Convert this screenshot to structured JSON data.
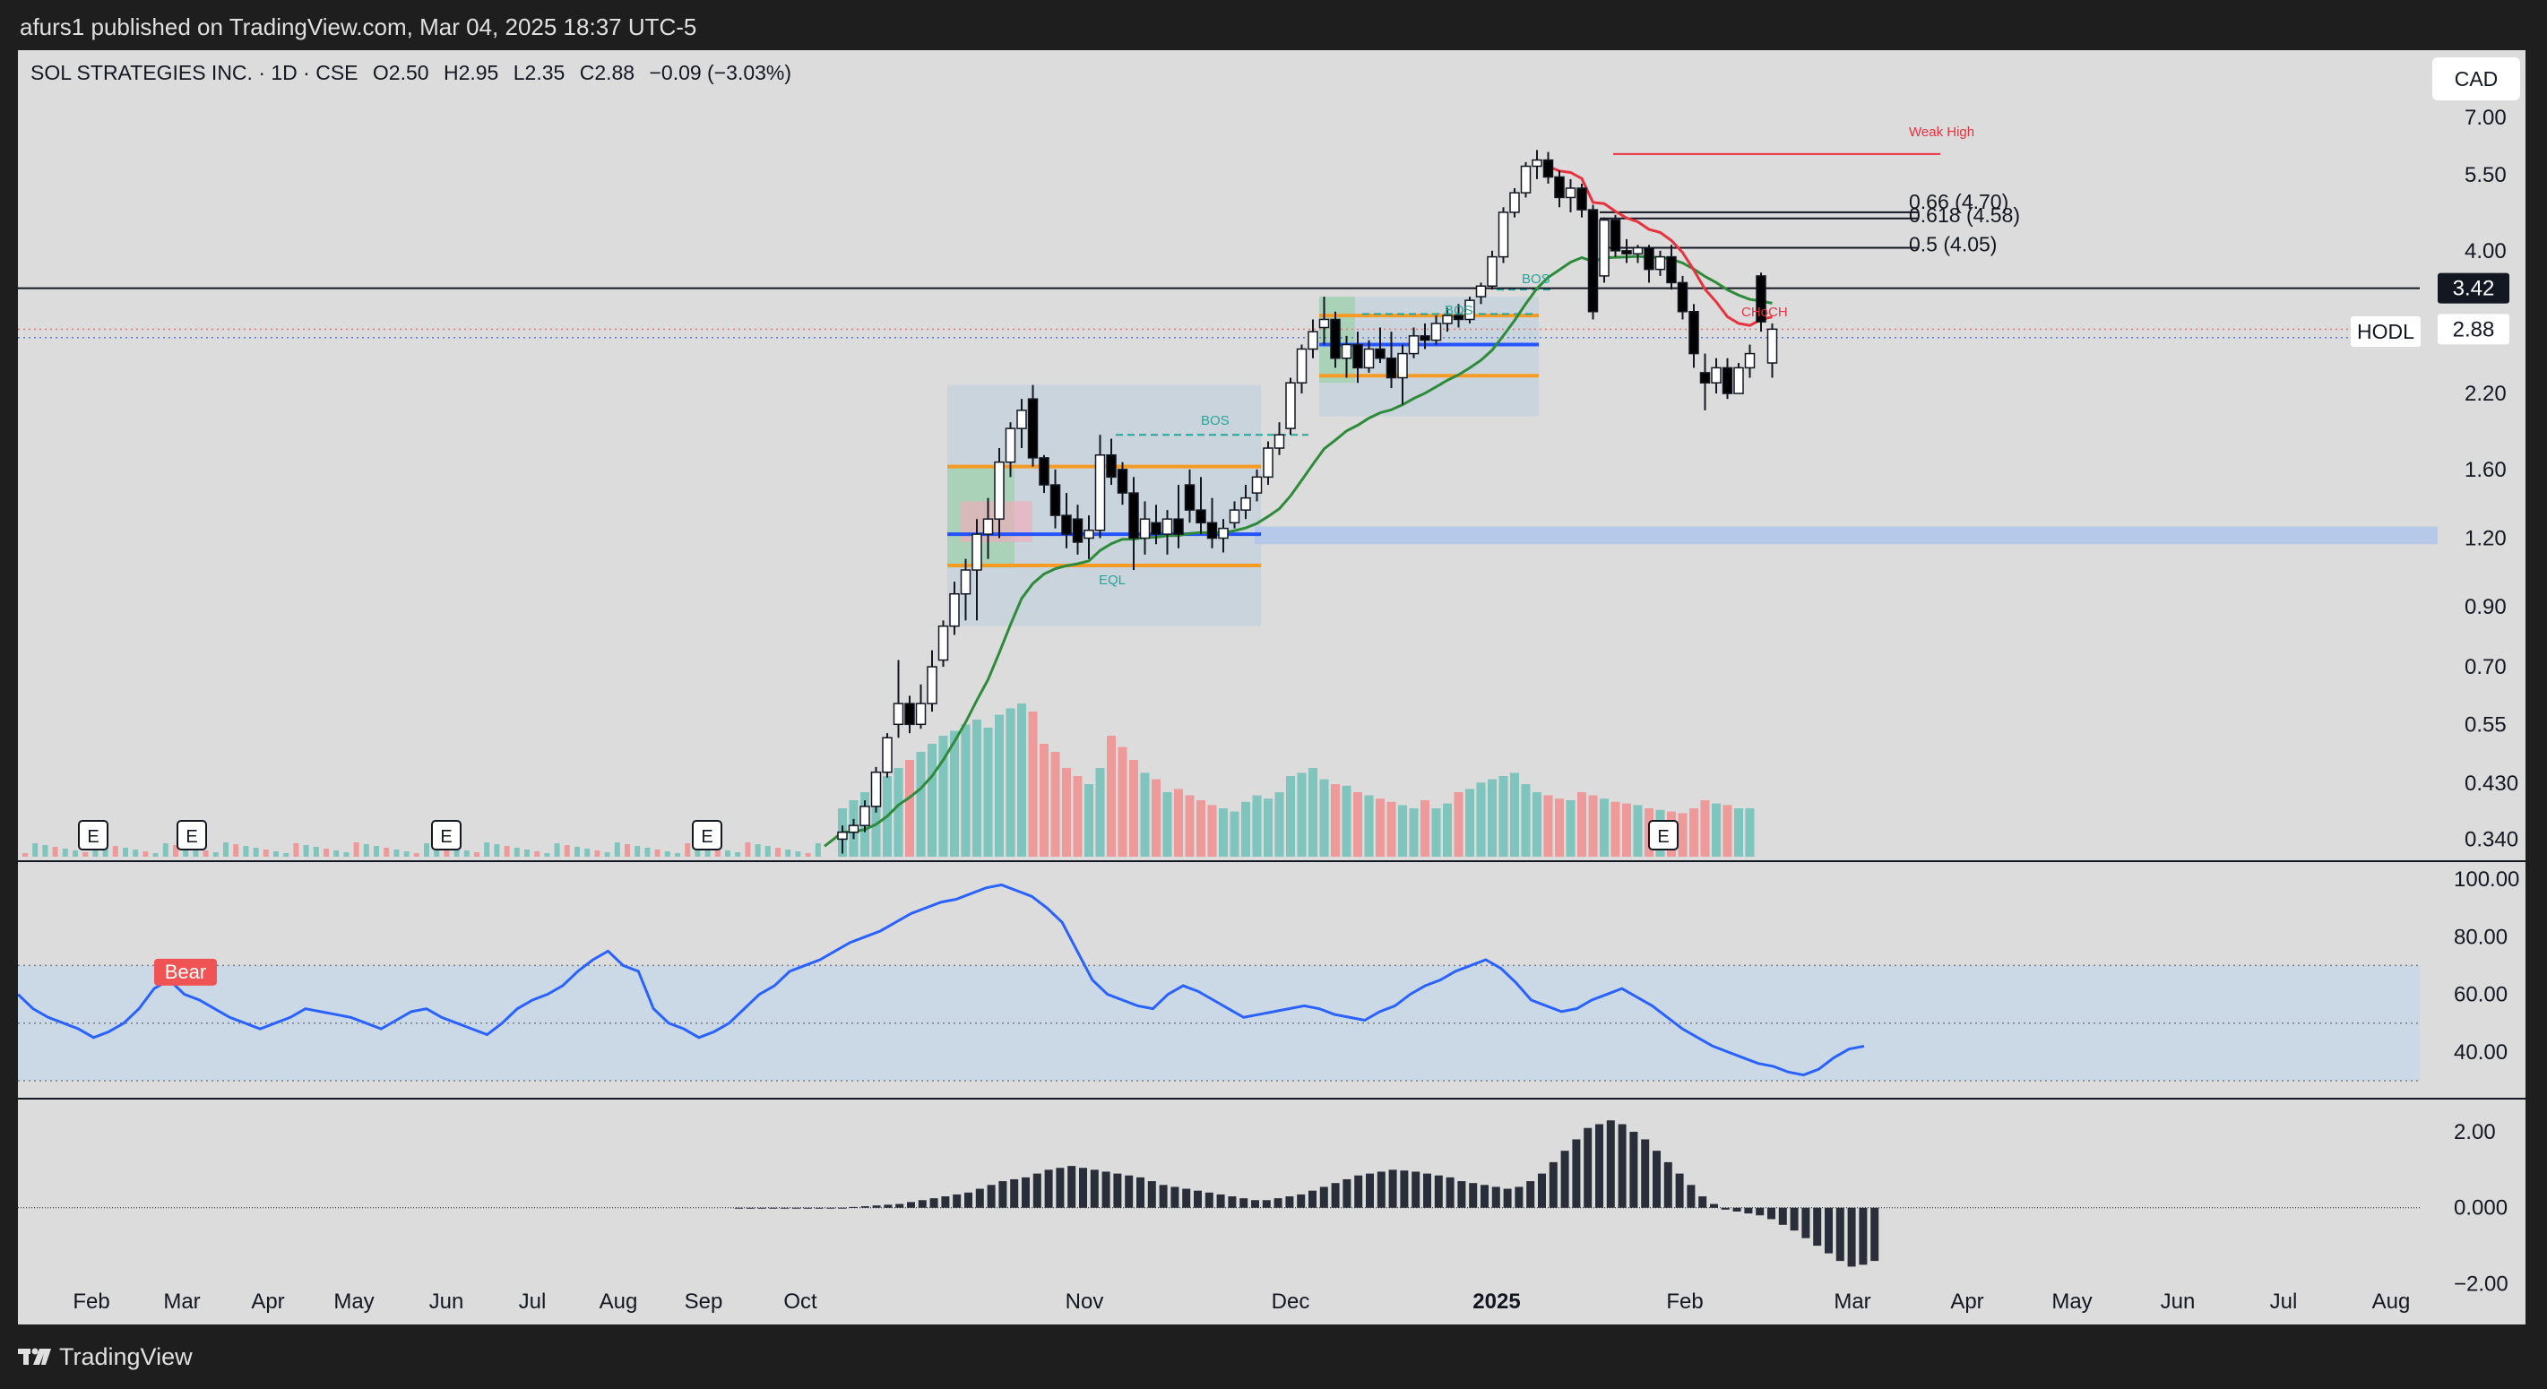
{
  "header": {
    "published": "afurs1 published on TradingView.com, Mar 04, 2025 18:37 UTC-5"
  },
  "legend": {
    "symbol": "SOL STRATEGIES INC. · 1D · CSE",
    "open_label": "O",
    "open": "2.50",
    "high_label": "H",
    "high": "2.95",
    "low_label": "L",
    "low": "2.35",
    "close_label": "C",
    "close": "2.88",
    "change": "−0.09 (−3.03%)"
  },
  "currency_button": "CAD",
  "hodl_label": "HODL",
  "footer": {
    "brand": "TradingView",
    "logo_icon": "tradingview-logo-icon"
  },
  "colors": {
    "up_candle": "#ffffff",
    "down_candle": "#000000",
    "volume_up": "#7fc4bd",
    "volume_down": "#ef9a9a",
    "ema_green": "#2e8b3a",
    "ema_red": "#e8323e",
    "rsi_line": "#2962ff",
    "rsi_band": "#c9d8e8",
    "order_block_orange": "#f59b23",
    "eq_blue": "#2453ff",
    "fvg_band": "#b3c7ea",
    "price_tag": "#131722"
  },
  "chart_data": [
    {
      "type": "candlestick",
      "title": "SOL STRATEGIES INC. · 1D · CSE",
      "y_scale": "log",
      "ylim": [
        0.31,
        7.4
      ],
      "y_ticks": [
        "7.00",
        "5.50",
        "4.00",
        "3.42",
        "2.88",
        "2.20",
        "1.60",
        "1.20",
        "0.90",
        "0.70",
        "0.55",
        "0.430",
        "0.340"
      ],
      "x_ticks": [
        "Feb",
        "Mar",
        "Apr",
        "May",
        "Jun",
        "Jul",
        "Aug",
        "Sep",
        "Oct",
        "Nov",
        "Dec",
        "2025",
        "Feb",
        "Mar",
        "Apr",
        "May",
        "Jun",
        "Jul",
        "Aug"
      ],
      "last_price": "2.88",
      "horizontal_level": "3.42",
      "fib_levels": [
        {
          "label": "0.66 (4.70)",
          "value": 4.7
        },
        {
          "label": "0.618 (4.58)",
          "value": 4.58
        },
        {
          "label": "0.5 (4.05)",
          "value": 4.05
        }
      ],
      "annotations": [
        "Weak High",
        "BOS",
        "BOS",
        "BOS",
        "EQL",
        "CHoCH"
      ],
      "earnings_markers": [
        "E",
        "E",
        "E",
        "E",
        "E"
      ],
      "candles": [
        {
          "o": 0.34,
          "h": 0.36,
          "l": 0.32,
          "c": 0.35
        },
        {
          "o": 0.35,
          "h": 0.37,
          "l": 0.34,
          "c": 0.36
        },
        {
          "o": 0.36,
          "h": 0.4,
          "l": 0.35,
          "c": 0.39
        },
        {
          "o": 0.39,
          "h": 0.46,
          "l": 0.38,
          "c": 0.45
        },
        {
          "o": 0.45,
          "h": 0.53,
          "l": 0.44,
          "c": 0.52
        },
        {
          "o": 0.55,
          "h": 0.72,
          "l": 0.52,
          "c": 0.6
        },
        {
          "o": 0.6,
          "h": 0.62,
          "l": 0.53,
          "c": 0.55
        },
        {
          "o": 0.55,
          "h": 0.65,
          "l": 0.54,
          "c": 0.6
        },
        {
          "o": 0.6,
          "h": 0.75,
          "l": 0.58,
          "c": 0.7
        },
        {
          "o": 0.72,
          "h": 0.85,
          "l": 0.7,
          "c": 0.83
        },
        {
          "o": 0.83,
          "h": 1.0,
          "l": 0.8,
          "c": 0.95
        },
        {
          "o": 0.95,
          "h": 1.1,
          "l": 0.85,
          "c": 1.05
        },
        {
          "o": 1.05,
          "h": 1.3,
          "l": 0.85,
          "c": 1.22
        },
        {
          "o": 1.22,
          "h": 1.42,
          "l": 1.1,
          "c": 1.3
        },
        {
          "o": 1.3,
          "h": 1.75,
          "l": 1.2,
          "c": 1.65
        },
        {
          "o": 1.65,
          "h": 1.95,
          "l": 1.55,
          "c": 1.9
        },
        {
          "o": 1.9,
          "h": 2.15,
          "l": 1.75,
          "c": 2.05
        },
        {
          "o": 2.15,
          "h": 2.28,
          "l": 1.62,
          "c": 1.68
        },
        {
          "o": 1.68,
          "h": 1.7,
          "l": 1.45,
          "c": 1.5
        },
        {
          "o": 1.5,
          "h": 1.6,
          "l": 1.25,
          "c": 1.32
        },
        {
          "o": 1.32,
          "h": 1.45,
          "l": 1.15,
          "c": 1.22
        },
        {
          "o": 1.3,
          "h": 1.38,
          "l": 1.12,
          "c": 1.18
        },
        {
          "o": 1.2,
          "h": 1.32,
          "l": 1.1,
          "c": 1.24
        },
        {
          "o": 1.24,
          "h": 1.85,
          "l": 1.2,
          "c": 1.7
        },
        {
          "o": 1.7,
          "h": 1.82,
          "l": 1.5,
          "c": 1.55
        },
        {
          "o": 1.6,
          "h": 1.65,
          "l": 1.38,
          "c": 1.45
        },
        {
          "o": 1.45,
          "h": 1.55,
          "l": 1.05,
          "c": 1.2
        },
        {
          "o": 1.2,
          "h": 1.4,
          "l": 1.12,
          "c": 1.3
        },
        {
          "o": 1.28,
          "h": 1.38,
          "l": 1.17,
          "c": 1.22
        },
        {
          "o": 1.22,
          "h": 1.35,
          "l": 1.12,
          "c": 1.3
        },
        {
          "o": 1.3,
          "h": 1.5,
          "l": 1.15,
          "c": 1.22
        },
        {
          "o": 1.5,
          "h": 1.6,
          "l": 1.28,
          "c": 1.35
        },
        {
          "o": 1.35,
          "h": 1.55,
          "l": 1.22,
          "c": 1.28
        },
        {
          "o": 1.28,
          "h": 1.42,
          "l": 1.15,
          "c": 1.2
        },
        {
          "o": 1.2,
          "h": 1.3,
          "l": 1.13,
          "c": 1.25
        },
        {
          "o": 1.28,
          "h": 1.4,
          "l": 1.25,
          "c": 1.35
        },
        {
          "o": 1.35,
          "h": 1.5,
          "l": 1.3,
          "c": 1.42
        },
        {
          "o": 1.45,
          "h": 1.6,
          "l": 1.4,
          "c": 1.55
        },
        {
          "o": 1.55,
          "h": 1.8,
          "l": 1.5,
          "c": 1.75
        },
        {
          "o": 1.75,
          "h": 1.95,
          "l": 1.7,
          "c": 1.85
        },
        {
          "o": 1.9,
          "h": 2.35,
          "l": 1.85,
          "c": 2.3
        },
        {
          "o": 2.3,
          "h": 2.7,
          "l": 2.2,
          "c": 2.65
        },
        {
          "o": 2.65,
          "h": 3.0,
          "l": 2.55,
          "c": 2.85
        },
        {
          "o": 2.9,
          "h": 3.3,
          "l": 2.7,
          "c": 3.0
        },
        {
          "o": 3.0,
          "h": 3.1,
          "l": 2.45,
          "c": 2.55
        },
        {
          "o": 2.55,
          "h": 2.8,
          "l": 2.35,
          "c": 2.7
        },
        {
          "o": 2.7,
          "h": 2.85,
          "l": 2.3,
          "c": 2.45
        },
        {
          "o": 2.45,
          "h": 2.75,
          "l": 2.4,
          "c": 2.65
        },
        {
          "o": 2.65,
          "h": 2.9,
          "l": 2.5,
          "c": 2.55
        },
        {
          "o": 2.55,
          "h": 2.85,
          "l": 2.25,
          "c": 2.35
        },
        {
          "o": 2.35,
          "h": 2.7,
          "l": 2.1,
          "c": 2.6
        },
        {
          "o": 2.6,
          "h": 2.9,
          "l": 2.55,
          "c": 2.8
        },
        {
          "o": 2.8,
          "h": 2.95,
          "l": 2.65,
          "c": 2.75
        },
        {
          "o": 2.75,
          "h": 3.05,
          "l": 2.7,
          "c": 2.95
        },
        {
          "o": 2.95,
          "h": 3.15,
          "l": 2.85,
          "c": 3.05
        },
        {
          "o": 3.05,
          "h": 3.2,
          "l": 2.9,
          "c": 3.0
        },
        {
          "o": 3.0,
          "h": 3.3,
          "l": 2.95,
          "c": 3.25
        },
        {
          "o": 3.3,
          "h": 3.5,
          "l": 3.2,
          "c": 3.45
        },
        {
          "o": 3.45,
          "h": 4.0,
          "l": 3.4,
          "c": 3.9
        },
        {
          "o": 3.9,
          "h": 4.8,
          "l": 3.8,
          "c": 4.7
        },
        {
          "o": 4.7,
          "h": 5.2,
          "l": 4.6,
          "c": 5.1
        },
        {
          "o": 5.1,
          "h": 5.8,
          "l": 5.0,
          "c": 5.7
        },
        {
          "o": 5.7,
          "h": 6.1,
          "l": 5.4,
          "c": 5.85
        },
        {
          "o": 5.85,
          "h": 6.05,
          "l": 5.3,
          "c": 5.45
        },
        {
          "o": 5.45,
          "h": 5.6,
          "l": 4.8,
          "c": 5.0
        },
        {
          "o": 5.0,
          "h": 5.4,
          "l": 4.7,
          "c": 5.2
        },
        {
          "o": 5.2,
          "h": 5.3,
          "l": 4.6,
          "c": 4.75
        },
        {
          "o": 4.75,
          "h": 4.85,
          "l": 3.0,
          "c": 3.1
        },
        {
          "o": 3.6,
          "h": 4.6,
          "l": 3.5,
          "c": 4.55
        },
        {
          "o": 4.55,
          "h": 4.65,
          "l": 3.9,
          "c": 4.0
        },
        {
          "o": 4.0,
          "h": 4.2,
          "l": 3.8,
          "c": 3.95
        },
        {
          "o": 3.95,
          "h": 4.1,
          "l": 3.8,
          "c": 4.05
        },
        {
          "o": 4.05,
          "h": 4.1,
          "l": 3.5,
          "c": 3.7
        },
        {
          "o": 3.7,
          "h": 4.0,
          "l": 3.6,
          "c": 3.9
        },
        {
          "o": 3.9,
          "h": 4.1,
          "l": 3.4,
          "c": 3.5
        },
        {
          "o": 3.5,
          "h": 3.6,
          "l": 3.0,
          "c": 3.1
        },
        {
          "o": 3.1,
          "h": 3.2,
          "l": 2.45,
          "c": 2.6
        },
        {
          "o": 2.4,
          "h": 2.6,
          "l": 2.05,
          "c": 2.3
        },
        {
          "o": 2.3,
          "h": 2.55,
          "l": 2.2,
          "c": 2.45
        },
        {
          "o": 2.45,
          "h": 2.55,
          "l": 2.15,
          "c": 2.2
        },
        {
          "o": 2.2,
          "h": 2.5,
          "l": 2.2,
          "c": 2.45
        },
        {
          "o": 2.45,
          "h": 2.7,
          "l": 2.35,
          "c": 2.6
        },
        {
          "o": 3.6,
          "h": 3.65,
          "l": 2.85,
          "c": 2.97
        },
        {
          "o": 2.5,
          "h": 2.95,
          "l": 2.35,
          "c": 2.88
        }
      ]
    },
    {
      "type": "bar",
      "title": "Volume",
      "series": [
        {
          "values": [
            0.3,
            0.35,
            0.4,
            0.45,
            0.5,
            0.55,
            0.6,
            0.65,
            0.7,
            0.75,
            0.78,
            0.82,
            0.85,
            0.8,
            0.88,
            0.92,
            0.95,
            0.9,
            0.7,
            0.65,
            0.55,
            0.5,
            0.45,
            0.55,
            0.75,
            0.68,
            0.6,
            0.52,
            0.48,
            0.4,
            0.42,
            0.38,
            0.35,
            0.32,
            0.3,
            0.28,
            0.34,
            0.38,
            0.36,
            0.4,
            0.5,
            0.52,
            0.55,
            0.48,
            0.45,
            0.44,
            0.4,
            0.38,
            0.36,
            0.34,
            0.32,
            0.3,
            0.35,
            0.3,
            0.33,
            0.4,
            0.42,
            0.46,
            0.48,
            0.5,
            0.52,
            0.45,
            0.4,
            0.38,
            0.36,
            0.35,
            0.4,
            0.38,
            0.36,
            0.34,
            0.33,
            0.32,
            0.3,
            0.29,
            0.28,
            0.27,
            0.3,
            0.35,
            0.33,
            0.32,
            0.3,
            0.3
          ]
        }
      ]
    },
    {
      "type": "line",
      "title": "RSI",
      "y_ticks": [
        "100.00",
        "80.00",
        "60.00",
        "40.00"
      ],
      "ylim": [
        30,
        100
      ],
      "band": [
        30,
        70
      ],
      "midline": 50,
      "signal_label": "Bear",
      "series": [
        {
          "values": [
            60,
            55,
            52,
            50,
            48,
            45,
            47,
            50,
            55,
            62,
            65,
            60,
            58,
            55,
            52,
            50,
            48,
            50,
            52,
            55,
            54,
            53,
            52,
            50,
            48,
            51,
            54,
            55,
            52,
            50,
            48,
            46,
            50,
            55,
            58,
            60,
            63,
            68,
            72,
            75,
            70,
            68,
            55,
            50,
            48,
            45,
            47,
            50,
            55,
            60,
            63,
            68,
            70,
            72,
            75,
            78,
            80,
            82,
            85,
            88,
            90,
            92,
            93,
            95,
            97,
            98,
            96,
            94,
            90,
            85,
            75,
            65,
            60,
            58,
            56,
            55,
            60,
            63,
            61,
            58,
            55,
            52,
            53,
            54,
            55,
            56,
            55,
            53,
            52,
            51,
            54,
            56,
            60,
            63,
            65,
            68,
            70,
            72,
            69,
            64,
            58,
            56,
            54,
            55,
            58,
            60,
            62,
            59,
            56,
            52,
            48,
            45,
            42,
            40,
            38,
            36,
            35,
            33,
            32,
            34,
            38,
            41,
            42
          ]
        }
      ]
    },
    {
      "type": "bar",
      "title": "Momentum histogram",
      "y_ticks": [
        "2.00",
        "0.000",
        "−2.00"
      ],
      "ylim": [
        -2.2,
        2.4
      ],
      "series": [
        {
          "values": [
            0,
            0,
            0,
            0,
            0,
            0,
            0,
            0,
            0,
            0,
            0.02,
            0.04,
            0.06,
            0.08,
            0.1,
            0.15,
            0.2,
            0.25,
            0.3,
            0.35,
            0.4,
            0.5,
            0.6,
            0.7,
            0.75,
            0.8,
            0.9,
            1.0,
            1.05,
            1.1,
            1.05,
            1.0,
            0.95,
            0.9,
            0.85,
            0.8,
            0.7,
            0.6,
            0.55,
            0.5,
            0.45,
            0.4,
            0.35,
            0.3,
            0.25,
            0.2,
            0.2,
            0.25,
            0.3,
            0.35,
            0.45,
            0.55,
            0.65,
            0.75,
            0.85,
            0.9,
            0.95,
            1.0,
            0.98,
            0.95,
            0.9,
            0.85,
            0.8,
            0.7,
            0.65,
            0.6,
            0.55,
            0.5,
            0.55,
            0.7,
            0.9,
            1.2,
            1.5,
            1.8,
            2.1,
            2.2,
            2.3,
            2.2,
            2.0,
            1.8,
            1.5,
            1.2,
            0.9,
            0.6,
            0.3,
            0.1,
            -0.05,
            -0.1,
            -0.15,
            -0.2,
            -0.3,
            -0.45,
            -0.6,
            -0.8,
            -1.0,
            -1.2,
            -1.4,
            -1.55,
            -1.5,
            -1.4
          ]
        }
      ]
    }
  ]
}
